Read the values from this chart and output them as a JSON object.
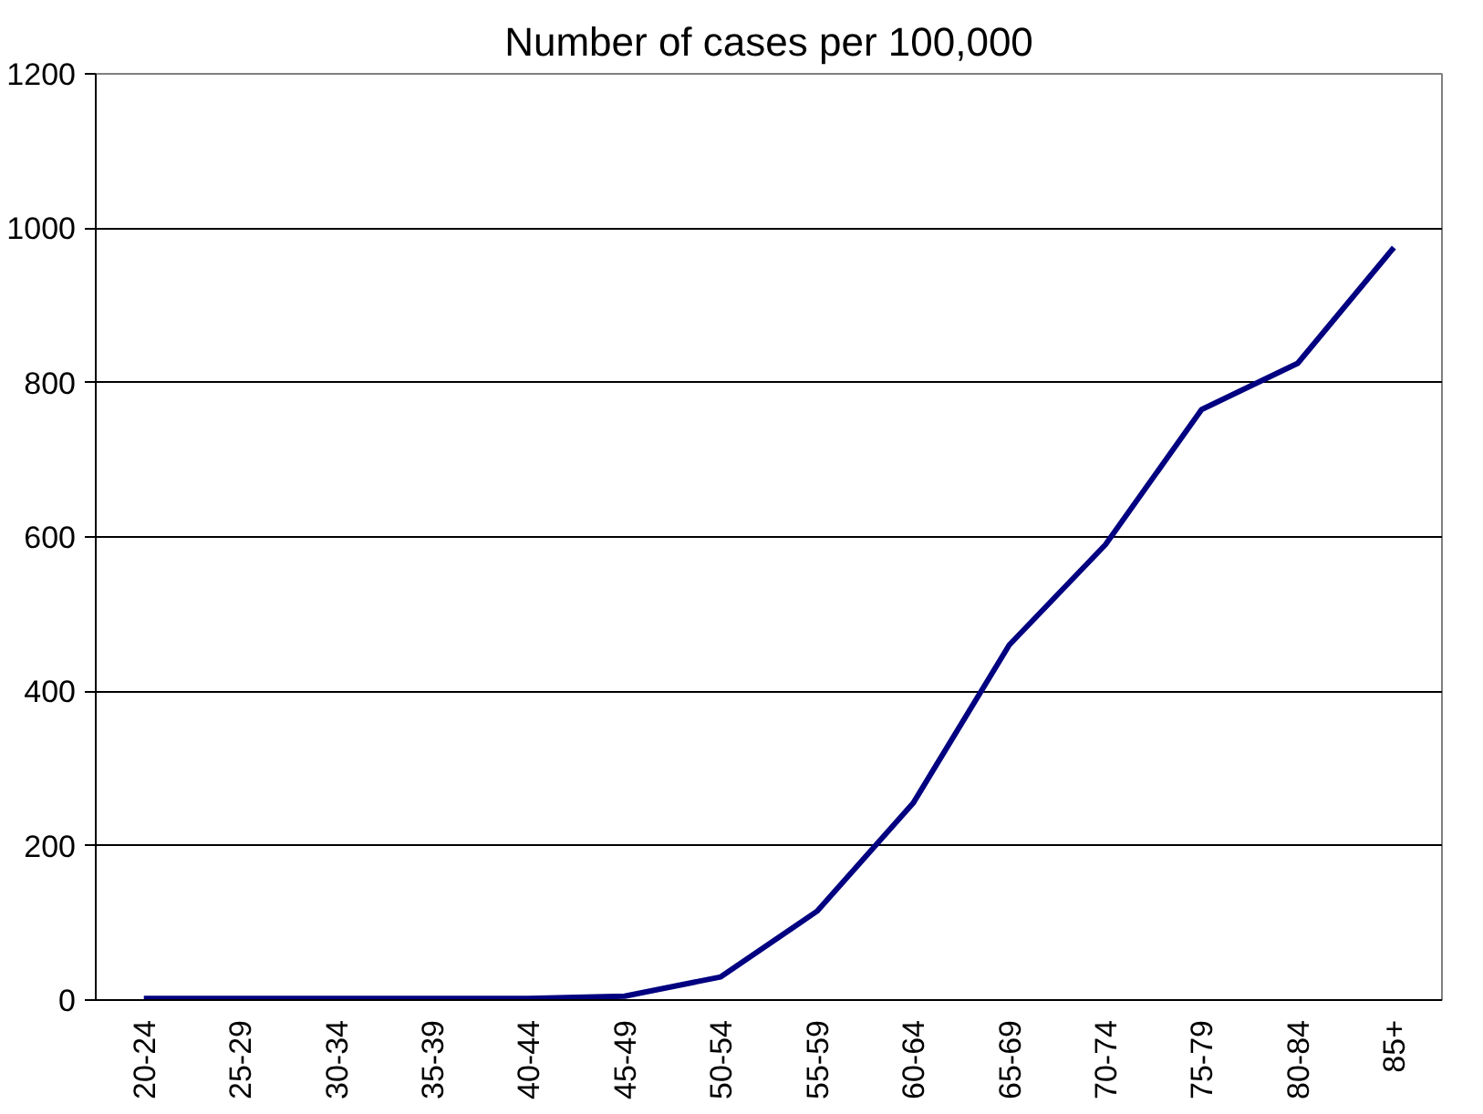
{
  "chart_data": {
    "type": "line",
    "title": "Number of cases per 100,000",
    "categories": [
      "20-24",
      "25-29",
      "30-34",
      "35-39",
      "40-44",
      "45-49",
      "50-54",
      "55-59",
      "60-64",
      "65-69",
      "70-74",
      "75-79",
      "80-84",
      "85+"
    ],
    "series": [
      {
        "color": "#000080",
        "values": [
          2,
          2,
          2,
          2,
          2,
          5,
          30,
          115,
          255,
          460,
          590,
          765,
          825,
          975
        ]
      }
    ],
    "ylim": [
      0,
      1200
    ],
    "yticks": [
      0,
      200,
      400,
      600,
      800,
      1000,
      1200
    ],
    "grid": "y",
    "marker": "none",
    "line_style": "solid"
  }
}
